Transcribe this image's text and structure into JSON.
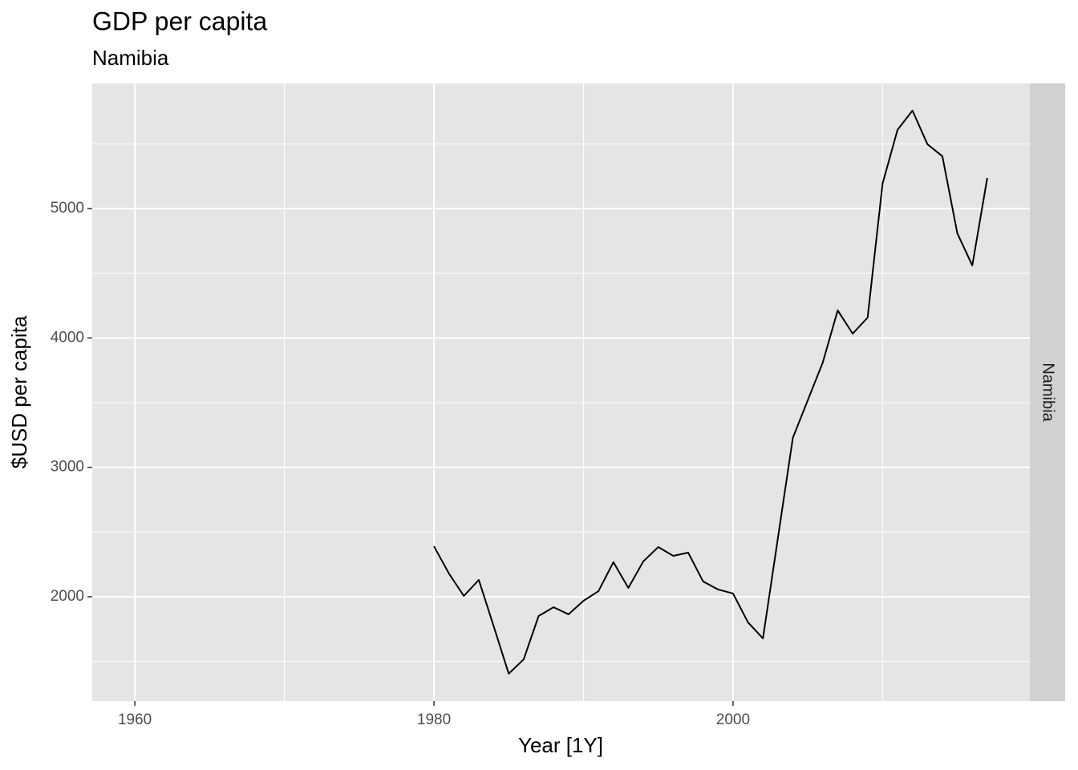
{
  "chart_data": {
    "type": "line",
    "title": "GDP per capita",
    "subtitle": "Namibia",
    "x_label": "Year [1Y]",
    "y_label": "$USD per capita",
    "facet": "Namibia",
    "x": [
      1980,
      1981,
      1982,
      1983,
      1984,
      1985,
      1986,
      1987,
      1988,
      1989,
      1990,
      1991,
      1992,
      1993,
      1994,
      1995,
      1996,
      1997,
      1998,
      1999,
      2000,
      2001,
      2002,
      2003,
      2004,
      2005,
      2006,
      2007,
      2008,
      2009,
      2010,
      2011,
      2012,
      2013,
      2014,
      2015,
      2016,
      2017
    ],
    "series": [
      {
        "name": "Namibia",
        "color": "#000000",
        "values": [
          2390,
          2180,
          2006,
          2130,
          1770,
          1405,
          1516,
          1851,
          1919,
          1864,
          1969,
          2043,
          2267,
          2068,
          2273,
          2384,
          2316,
          2341,
          2118,
          2056,
          2025,
          1802,
          1678,
          2453,
          3228,
          3519,
          3810,
          4213,
          4033,
          4157,
          5193,
          5608,
          5757,
          5497,
          5404,
          4808,
          4560,
          5236
        ]
      }
    ],
    "xlim": [
      1957.15,
      2019.85
    ],
    "xticks": [
      1960,
      1980,
      2000
    ],
    "xminor": [
      1970,
      1990,
      2010
    ],
    "ylim": [
      1194,
      5967
    ],
    "yticks": [
      2000,
      3000,
      4000,
      5000
    ],
    "yminor": [
      1500,
      2500,
      3500,
      4500,
      5500
    ],
    "grid": true
  }
}
